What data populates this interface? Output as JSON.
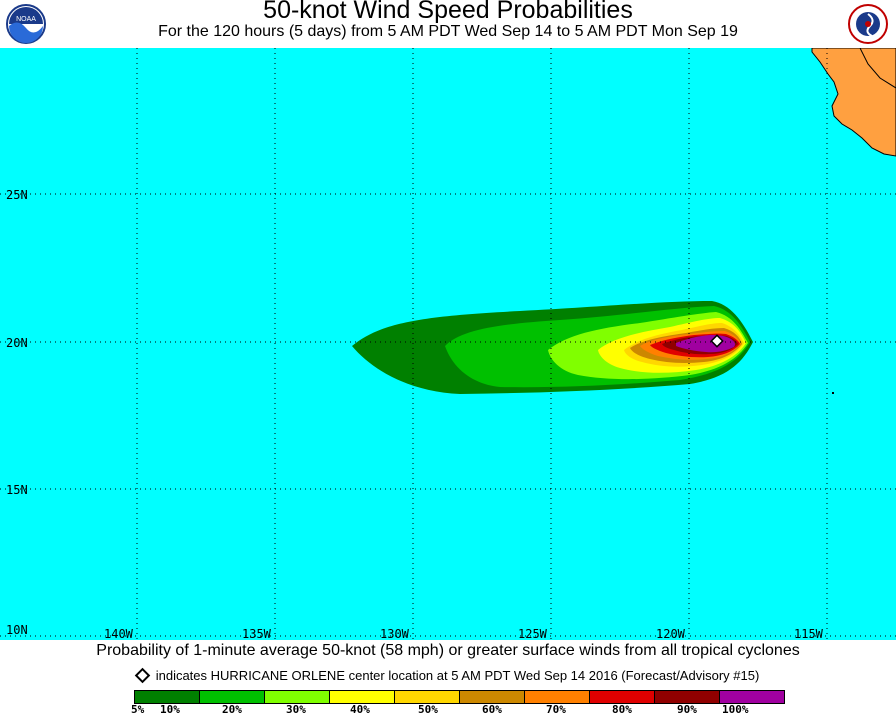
{
  "header": {
    "title": "50-knot Wind Speed Probabilities",
    "subtitle": "For the 120 hours (5 days) from 5 AM PDT Wed Sep 14 to 5 AM PDT Mon Sep 19",
    "left_logo_text": "NOAA",
    "right_logo_text": "NATIONAL WEATHER SERVICE"
  },
  "map": {
    "ocean_color": "#00ffff",
    "land_color": "#ffa040",
    "gridline_color": "#000000",
    "lat_labels": [
      "25N",
      "20N",
      "15N",
      "10N"
    ],
    "lon_labels": [
      "140W",
      "135W",
      "130W",
      "125W",
      "120W",
      "115W"
    ],
    "storm_center_marker": "diamond-icon"
  },
  "footer": {
    "description": "Probability of 1-minute average 50-knot (58 mph) or greater surface winds from all tropical cyclones",
    "marker_note": "indicates HURRICANE ORLENE center location at 5 AM PDT Wed Sep 14 2016 (Forecast/Advisory #15)"
  },
  "legend": {
    "colors": [
      "#008000",
      "#00c000",
      "#80ff00",
      "#ffff00",
      "#ffd700",
      "#cc8800",
      "#ff8000",
      "#e00000",
      "#900000",
      "#a000a0"
    ],
    "labels": [
      "5%",
      "10%",
      "20%",
      "30%",
      "40%",
      "50%",
      "60%",
      "70%",
      "80%",
      "90%",
      "100%"
    ]
  }
}
